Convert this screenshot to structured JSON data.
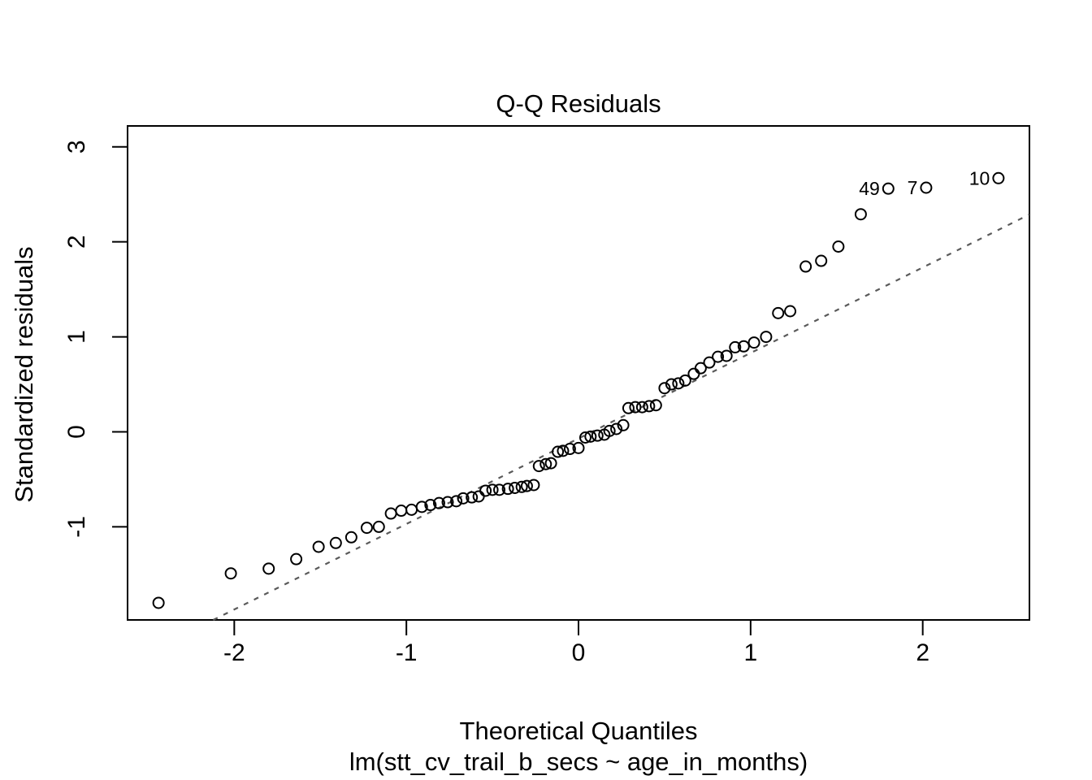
{
  "chart_data": {
    "type": "scatter",
    "subtype": "qq-plot",
    "title": "Q-Q Residuals",
    "xlabel": "Theoretical Quantiles",
    "ylabel": "Standardized residuals",
    "sub_caption": "lm(stt_cv_trail_b_secs ~ age_in_months)",
    "xlim": [
      -2.62,
      2.62
    ],
    "ylim": [
      -1.98,
      3.22
    ],
    "x_ticks": [
      -2,
      -1,
      0,
      1,
      2
    ],
    "y_ticks": [
      -1,
      0,
      1,
      2,
      3
    ],
    "grid": false,
    "legend": null,
    "marker": "open-circle",
    "n_points": 69,
    "colors": {
      "points": "#000000",
      "reference_line": "#5a5a5a",
      "text": "#000000",
      "background": "#ffffff"
    },
    "reference_line": {
      "slope": 0.9,
      "intercept": -0.07,
      "style": "dashed"
    },
    "points": {
      "x": [
        -2.44,
        -2.02,
        -1.8,
        -1.64,
        -1.51,
        -1.41,
        -1.32,
        -1.23,
        -1.16,
        -1.09,
        -1.03,
        -0.97,
        -0.91,
        -0.86,
        -0.81,
        -0.76,
        -0.71,
        -0.67,
        -0.62,
        -0.58,
        -0.54,
        -0.5,
        -0.46,
        -0.41,
        -0.37,
        -0.33,
        -0.3,
        -0.26,
        -0.23,
        -0.19,
        -0.16,
        -0.12,
        -0.09,
        -0.05,
        0.0,
        0.04,
        0.07,
        0.11,
        0.15,
        0.18,
        0.22,
        0.26,
        0.29,
        0.33,
        0.37,
        0.41,
        0.45,
        0.5,
        0.54,
        0.58,
        0.62,
        0.67,
        0.71,
        0.76,
        0.81,
        0.86,
        0.91,
        0.96,
        1.02,
        1.09,
        1.16,
        1.23,
        1.32,
        1.41,
        1.51,
        1.64,
        1.8,
        2.02,
        2.44
      ],
      "y": [
        -1.8,
        -1.49,
        -1.44,
        -1.34,
        -1.21,
        -1.17,
        -1.11,
        -1.01,
        -1.0,
        -0.86,
        -0.83,
        -0.82,
        -0.79,
        -0.77,
        -0.75,
        -0.74,
        -0.73,
        -0.7,
        -0.69,
        -0.68,
        -0.62,
        -0.61,
        -0.61,
        -0.6,
        -0.59,
        -0.58,
        -0.57,
        -0.56,
        -0.36,
        -0.34,
        -0.33,
        -0.21,
        -0.2,
        -0.18,
        -0.17,
        -0.06,
        -0.05,
        -0.04,
        -0.03,
        0.01,
        0.03,
        0.07,
        0.25,
        0.26,
        0.26,
        0.27,
        0.28,
        0.46,
        0.5,
        0.51,
        0.54,
        0.61,
        0.67,
        0.73,
        0.79,
        0.8,
        0.89,
        0.9,
        0.94,
        1.0,
        1.25,
        1.27,
        1.74,
        1.8,
        1.95,
        2.29,
        2.56,
        2.57,
        2.67
      ]
    },
    "labeled_points": [
      {
        "label": "49",
        "x": 1.8,
        "y": 2.56
      },
      {
        "label": "7",
        "x": 2.02,
        "y": 2.57
      },
      {
        "label": "10",
        "x": 2.44,
        "y": 2.67
      }
    ]
  }
}
